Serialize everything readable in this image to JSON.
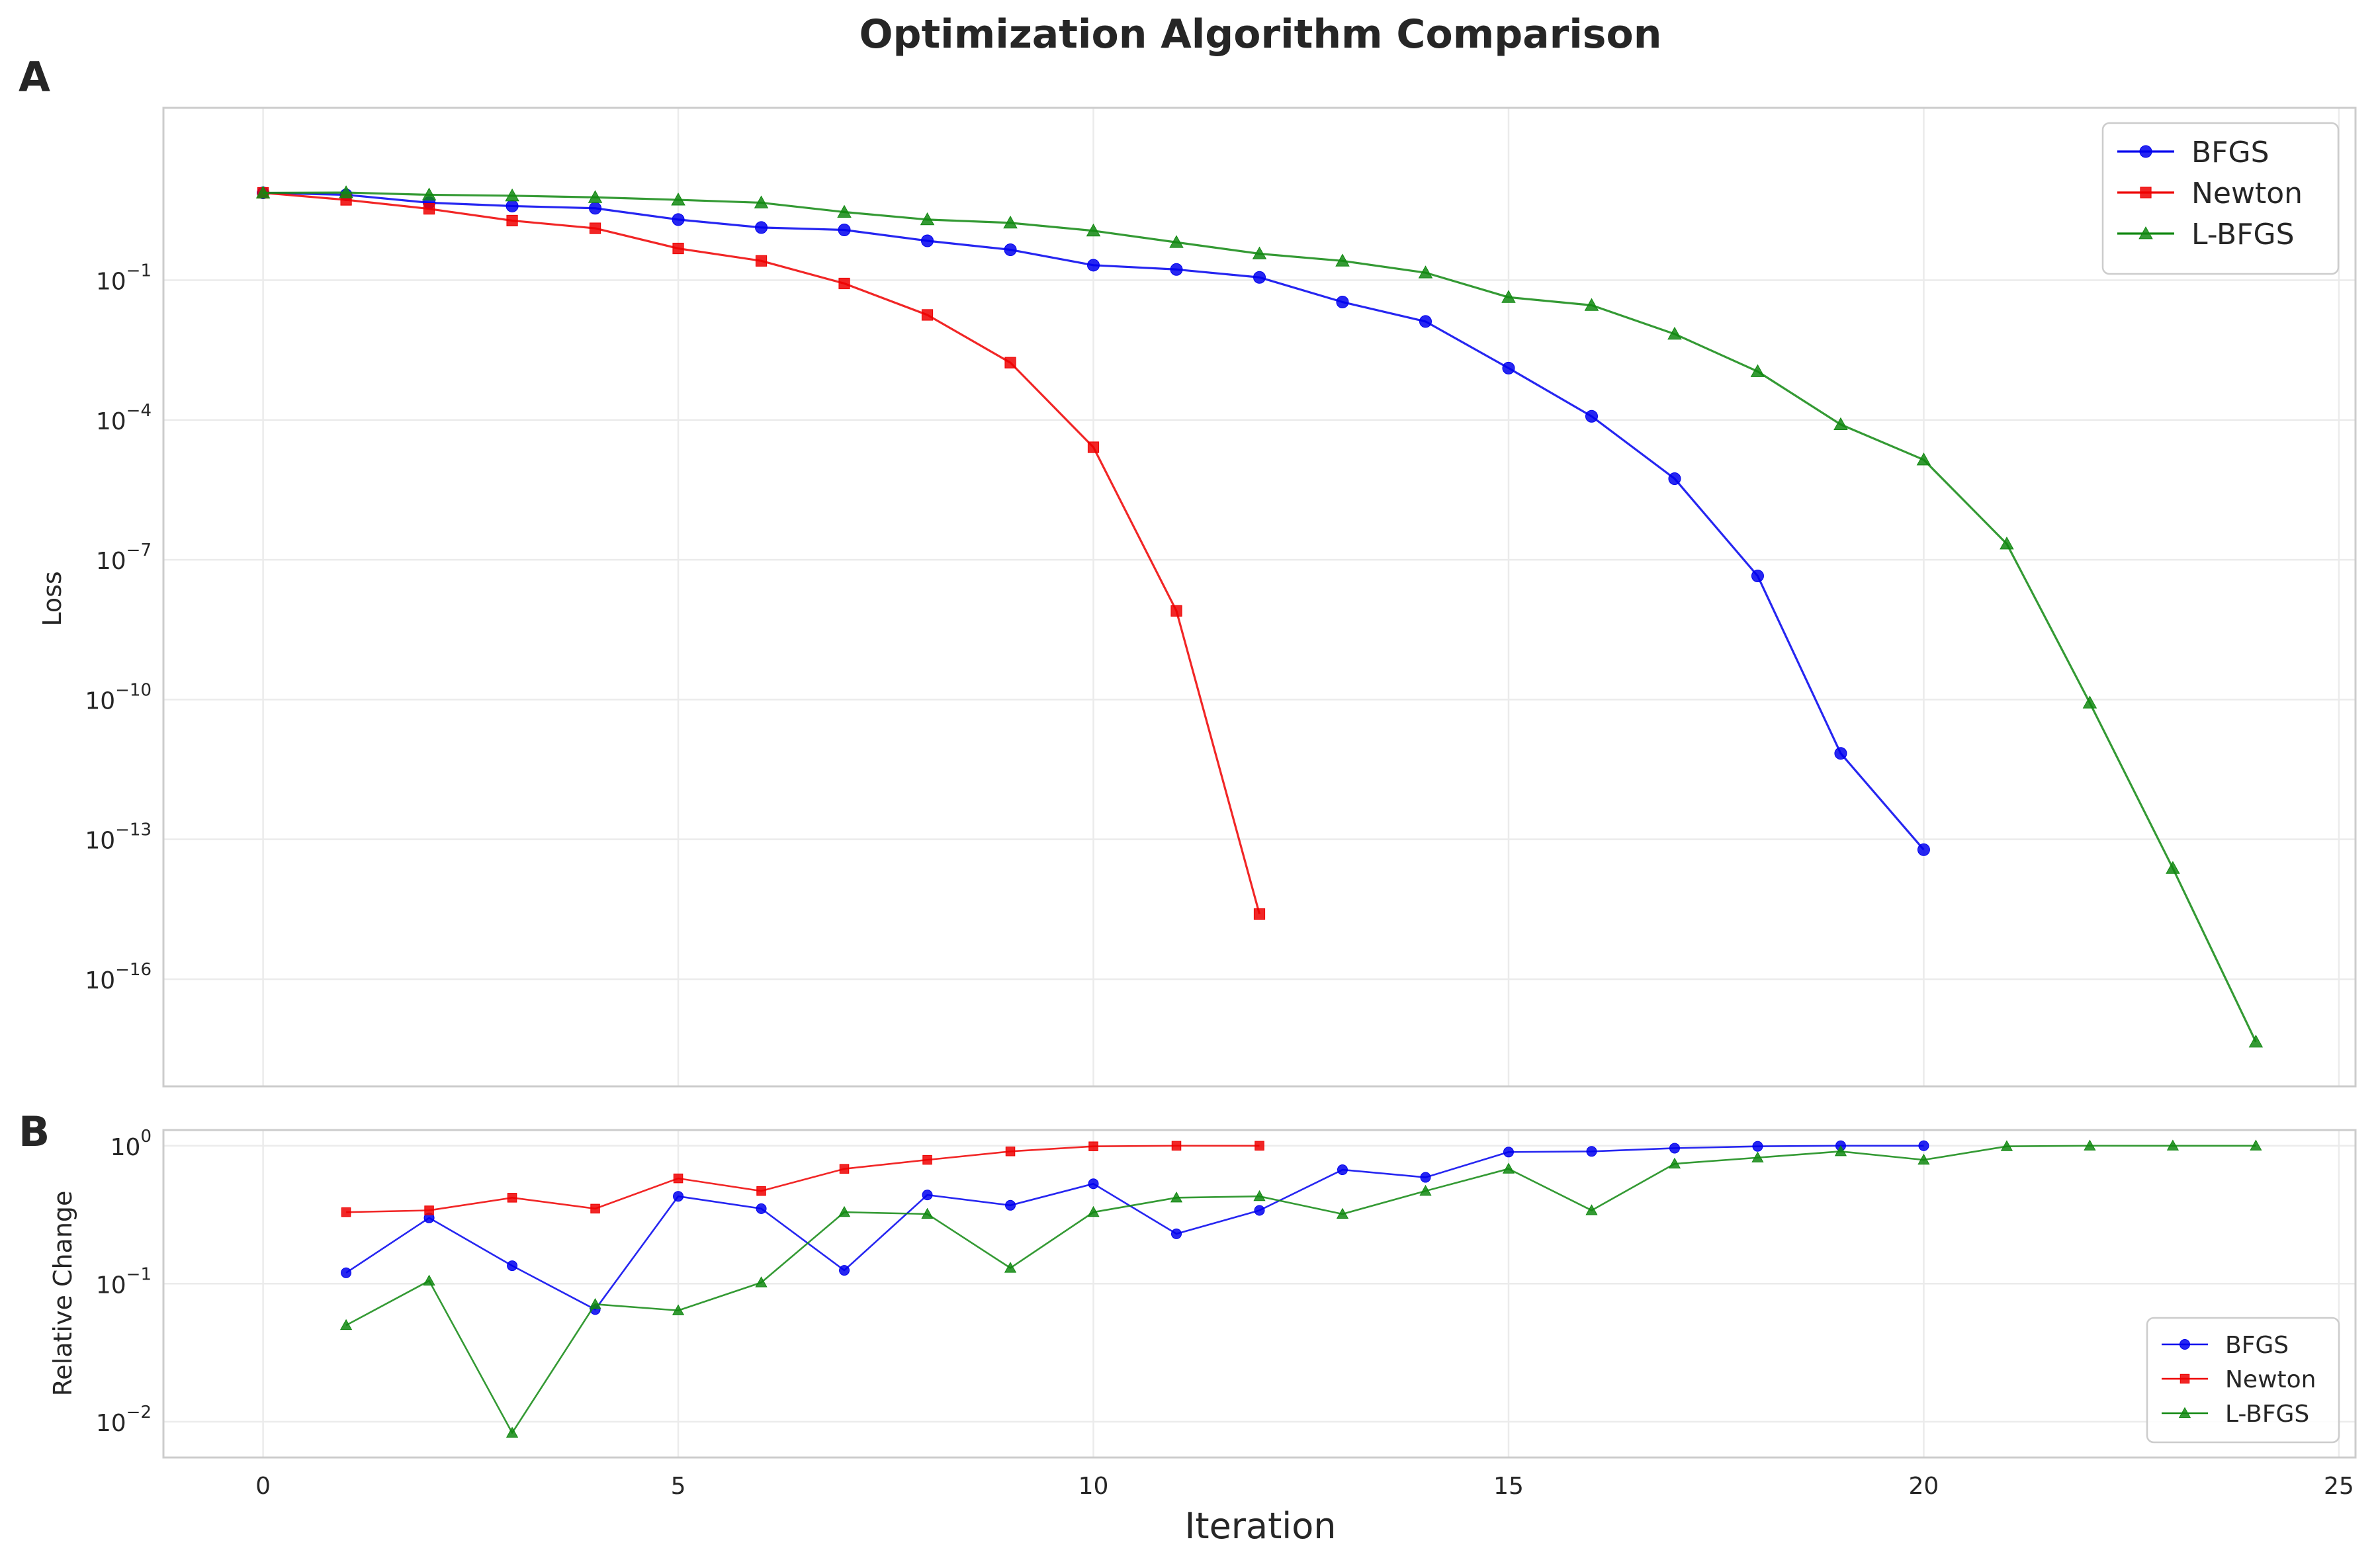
{
  "suptitle": "Optimization Algorithm Comparison",
  "chart_data": [
    {
      "panel_label": "A",
      "type": "line",
      "title": "",
      "xlabel": "",
      "ylabel": "Loss",
      "yscale": "log",
      "xlim": [
        -1.2,
        25.2
      ],
      "ylim": [
        5e-19,
        500
      ],
      "xticks": [
        0,
        5,
        10,
        15,
        20,
        25
      ],
      "show_xticklabels": false,
      "yticks": [
        {
          "base": "10",
          "exp": "−1",
          "value": 0.1
        },
        {
          "base": "10",
          "exp": "−4",
          "value": 0.0001
        },
        {
          "base": "10",
          "exp": "−7",
          "value": 1e-07
        },
        {
          "base": "10",
          "exp": "−10",
          "value": 1e-10
        },
        {
          "base": "10",
          "exp": "−13",
          "value": 1e-13
        },
        {
          "base": "10",
          "exp": "−16",
          "value": 1e-16
        }
      ],
      "grid": true,
      "legend_position": "top-right",
      "series": [
        {
          "name": "BFGS",
          "color": "#0000ee",
          "marker": "circle",
          "x": [
            0,
            1,
            2,
            3,
            4,
            5,
            6,
            7,
            8,
            9,
            10,
            11,
            12,
            13,
            14,
            15,
            16,
            17,
            18,
            19,
            20
          ],
          "y": [
            7.5,
            6.8,
            4.6,
            3.9,
            3.5,
            2.0,
            1.35,
            1.2,
            0.7,
            0.45,
            0.21,
            0.17,
            0.115,
            0.034,
            0.013,
            0.0013,
            0.00012,
            5.5e-06,
            4.5e-08,
            7e-12,
            6e-14
          ]
        },
        {
          "name": "Newton",
          "color": "#ee0000",
          "marker": "square",
          "x": [
            0,
            1,
            2,
            3,
            4,
            5,
            6,
            7,
            8,
            9,
            10,
            11,
            12
          ],
          "y": [
            7.5,
            5.3,
            3.4,
            1.9,
            1.3,
            0.48,
            0.26,
            0.085,
            0.018,
            0.0017,
            2.6e-05,
            8e-09,
            2.5e-15
          ]
        },
        {
          "name": "L-BFGS",
          "color": "#118811",
          "marker": "triangle",
          "x": [
            0,
            1,
            2,
            3,
            4,
            5,
            6,
            7,
            8,
            9,
            10,
            11,
            12,
            13,
            14,
            15,
            16,
            17,
            18,
            19,
            20,
            21,
            22,
            23,
            24
          ],
          "y": [
            7.5,
            7.6,
            6.8,
            6.5,
            6.0,
            5.3,
            4.6,
            2.9,
            2.0,
            1.7,
            1.15,
            0.65,
            0.37,
            0.26,
            0.145,
            0.043,
            0.029,
            0.007,
            0.0011,
            8e-05,
            1.4e-05,
            2.2e-07,
            8.5e-11,
            2.4e-14,
            4.5e-18
          ]
        }
      ]
    },
    {
      "panel_label": "B",
      "type": "line",
      "title": "",
      "xlabel": "Iteration",
      "ylabel": "Relative Change",
      "yscale": "log",
      "xlim": [
        -1.2,
        25.2
      ],
      "ylim": [
        0.0055,
        1.3
      ],
      "xticks": [
        0,
        5,
        10,
        15,
        20,
        25
      ],
      "show_xticklabels": true,
      "yticks": [
        {
          "base": "10",
          "exp": "0",
          "value": 1
        },
        {
          "base": "10",
          "exp": "−1",
          "value": 0.1
        },
        {
          "base": "10",
          "exp": "−2",
          "value": 0.01
        }
      ],
      "grid": true,
      "legend_position": "bottom-right",
      "series": [
        {
          "name": "BFGS",
          "color": "#0000ee",
          "marker": "circle",
          "x": [
            1,
            2,
            3,
            4,
            5,
            6,
            7,
            8,
            9,
            10,
            11,
            12,
            13,
            14,
            15,
            16,
            17,
            18,
            19,
            20
          ],
          "y": [
            0.12,
            0.3,
            0.135,
            0.065,
            0.43,
            0.35,
            0.125,
            0.44,
            0.37,
            0.53,
            0.23,
            0.34,
            0.67,
            0.59,
            0.9,
            0.91,
            0.96,
            0.99,
            1.0,
            1.0
          ]
        },
        {
          "name": "Newton",
          "color": "#ee0000",
          "marker": "square",
          "x": [
            1,
            2,
            3,
            4,
            5,
            6,
            7,
            8,
            9,
            10,
            11,
            12
          ],
          "y": [
            0.33,
            0.34,
            0.42,
            0.35,
            0.58,
            0.47,
            0.68,
            0.79,
            0.91,
            0.99,
            1.0,
            1.0
          ]
        },
        {
          "name": "L-BFGS",
          "color": "#118811",
          "marker": "triangle",
          "x": [
            1,
            2,
            3,
            4,
            5,
            6,
            7,
            8,
            9,
            10,
            11,
            12,
            13,
            14,
            15,
            16,
            17,
            18,
            19,
            20,
            21,
            22,
            23,
            24
          ],
          "y": [
            0.05,
            0.105,
            0.0083,
            0.071,
            0.064,
            0.102,
            0.33,
            0.32,
            0.13,
            0.33,
            0.42,
            0.43,
            0.32,
            0.47,
            0.68,
            0.34,
            0.74,
            0.82,
            0.91,
            0.79,
            0.99,
            1.0,
            1.0,
            1.0
          ]
        }
      ]
    }
  ]
}
